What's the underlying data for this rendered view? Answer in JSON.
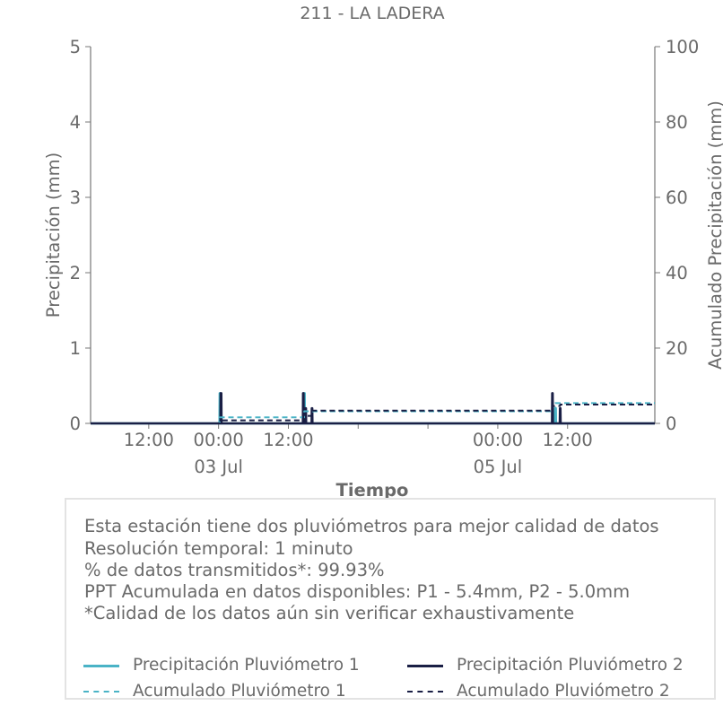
{
  "chart_data": {
    "type": "line",
    "title": "211 - LA LADERA",
    "xlabel": "Tiempo",
    "ylabel": "Precipitación (mm)",
    "y2label": "Acumulado Precipitación (mm)",
    "xlim": [
      "2024-07-02T02:00",
      "2024-07-06T03:00"
    ],
    "ylim": [
      0,
      5
    ],
    "y2lim": [
      0,
      100
    ],
    "yticks": [
      "0",
      "1",
      "2",
      "3",
      "4",
      "5"
    ],
    "y2ticks": [
      "0",
      "20",
      "40",
      "60",
      "80",
      "100"
    ],
    "xticks": [
      {
        "t": "2024-07-02T12:00",
        "label": "12:00",
        "sub": ""
      },
      {
        "t": "2024-07-03T00:00",
        "label": "00:00",
        "sub": "03 Jul"
      },
      {
        "t": "2024-07-03T12:00",
        "label": "12:00",
        "sub": ""
      },
      {
        "t": "2024-07-04T00:00",
        "label": "",
        "sub": ""
      },
      {
        "t": "2024-07-04T12:00",
        "label": "",
        "sub": ""
      },
      {
        "t": "2024-07-05T00:00",
        "label": "00:00",
        "sub": "05 Jul"
      },
      {
        "t": "2024-07-05T12:00",
        "label": "12:00",
        "sub": ""
      }
    ],
    "grid": false,
    "series": [
      {
        "name": "Precipitación Pluviómetro 1",
        "axis": "left",
        "style": "solid",
        "color": "#4ab3c6",
        "points": [
          [
            "2024-07-02T02:00",
            0
          ],
          [
            "2024-07-03T00:10",
            0
          ],
          [
            "2024-07-03T00:12",
            0.4
          ],
          [
            "2024-07-03T00:18",
            0.4
          ],
          [
            "2024-07-03T00:20",
            0
          ],
          [
            "2024-07-03T14:40",
            0
          ],
          [
            "2024-07-03T14:42",
            0.4
          ],
          [
            "2024-07-03T14:48",
            0.4
          ],
          [
            "2024-07-03T14:50",
            0
          ],
          [
            "2024-07-05T09:50",
            0
          ],
          [
            "2024-07-05T09:52",
            0.2
          ],
          [
            "2024-07-05T09:58",
            0.2
          ],
          [
            "2024-07-05T10:00",
            0
          ],
          [
            "2024-07-06T03:00",
            0
          ]
        ]
      },
      {
        "name": "Precipitación Pluviómetro 2",
        "axis": "left",
        "style": "solid",
        "color": "#1a1f45",
        "points": [
          [
            "2024-07-02T02:00",
            0
          ],
          [
            "2024-07-03T00:20",
            0
          ],
          [
            "2024-07-03T00:22",
            0.4
          ],
          [
            "2024-07-03T00:28",
            0.4
          ],
          [
            "2024-07-03T00:30",
            0
          ],
          [
            "2024-07-03T14:30",
            0
          ],
          [
            "2024-07-03T14:32",
            0.4
          ],
          [
            "2024-07-03T14:36",
            0.4
          ],
          [
            "2024-07-03T14:38",
            0
          ],
          [
            "2024-07-03T14:55",
            0
          ],
          [
            "2024-07-03T14:57",
            0.2
          ],
          [
            "2024-07-03T15:01",
            0.2
          ],
          [
            "2024-07-03T15:03",
            0
          ],
          [
            "2024-07-03T16:00",
            0
          ],
          [
            "2024-07-03T16:02",
            0.2
          ],
          [
            "2024-07-03T16:06",
            0.2
          ],
          [
            "2024-07-03T16:08",
            0
          ],
          [
            "2024-07-05T09:20",
            0
          ],
          [
            "2024-07-05T09:22",
            0.4
          ],
          [
            "2024-07-05T09:26",
            0.4
          ],
          [
            "2024-07-05T09:28",
            0
          ],
          [
            "2024-07-05T10:40",
            0
          ],
          [
            "2024-07-05T10:42",
            0.2
          ],
          [
            "2024-07-05T10:46",
            0.2
          ],
          [
            "2024-07-05T10:48",
            0
          ],
          [
            "2024-07-06T03:00",
            0
          ]
        ]
      },
      {
        "name": "Acumulado Pluviómetro 1",
        "axis": "right",
        "style": "dashed",
        "color": "#4ab3c6",
        "points": [
          [
            "2024-07-02T02:00",
            0
          ],
          [
            "2024-07-03T00:12",
            0
          ],
          [
            "2024-07-03T00:14",
            1.6
          ],
          [
            "2024-07-03T14:42",
            1.6
          ],
          [
            "2024-07-03T14:44",
            3.2
          ],
          [
            "2024-07-05T09:52",
            3.2
          ],
          [
            "2024-07-05T09:54",
            5.4
          ],
          [
            "2024-07-06T03:00",
            5.4
          ]
        ]
      },
      {
        "name": "Acumulado Pluviómetro 2",
        "axis": "right",
        "style": "dashed",
        "color": "#1a1f45",
        "points": [
          [
            "2024-07-02T02:00",
            0
          ],
          [
            "2024-07-03T00:22",
            0
          ],
          [
            "2024-07-03T00:24",
            0.8
          ],
          [
            "2024-07-03T14:32",
            0.8
          ],
          [
            "2024-07-03T14:34",
            2.0
          ],
          [
            "2024-07-03T16:02",
            2.0
          ],
          [
            "2024-07-03T16:04",
            3.4
          ],
          [
            "2024-07-05T09:22",
            3.4
          ],
          [
            "2024-07-05T09:24",
            4.6
          ],
          [
            "2024-07-05T10:42",
            4.6
          ],
          [
            "2024-07-05T10:44",
            5.0
          ],
          [
            "2024-07-06T03:00",
            5.0
          ]
        ]
      }
    ]
  },
  "info_box": {
    "lines": [
      "Esta estación tiene dos pluviómetros para mejor calidad de datos",
      "Resolución temporal: 1 minuto",
      "% de datos transmitidos*: 99.93%",
      "PPT Acumulada en datos disponibles: P1 - 5.4mm, P2 - 5.0mm",
      "*Calidad de los datos aún sin verificar exhaustivamente"
    ]
  },
  "legend": [
    {
      "label": "Precipitación Pluviómetro 1",
      "color": "#4ab3c6",
      "style": "solid"
    },
    {
      "label": "Precipitación Pluviómetro 2",
      "color": "#1a1f45",
      "style": "solid"
    },
    {
      "label": "Acumulado Pluviómetro 1",
      "color": "#4ab3c6",
      "style": "dashed"
    },
    {
      "label": "Acumulado Pluviómetro 2",
      "color": "#1a1f45",
      "style": "dashed"
    }
  ]
}
